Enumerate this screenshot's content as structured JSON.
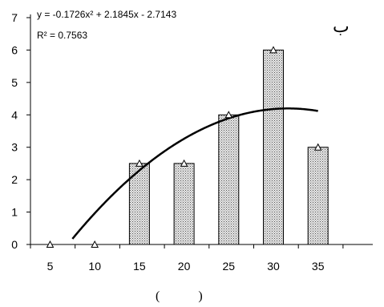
{
  "chart_data": {
    "type": "bar",
    "categories": [
      "5",
      "10",
      "15",
      "20",
      "25",
      "30",
      "35"
    ],
    "x": [
      5,
      10,
      15,
      20,
      25,
      30,
      35
    ],
    "values": [
      0,
      0,
      2.5,
      2.5,
      4,
      6,
      3
    ],
    "ylim": [
      0,
      7
    ],
    "yticks": [
      "0",
      "1",
      "2",
      "3",
      "4",
      "5",
      "6",
      "7"
    ],
    "xticks": [
      "5",
      "10",
      "15",
      "20",
      "25",
      "30",
      "35"
    ],
    "trendline": {
      "type": "polynomial",
      "equation": "y = -0.1726x² + 2.1845x - 2.7143",
      "r2": "R² = 0.7563",
      "coefficients": [
        -0.1726,
        2.1845,
        -2.7143
      ]
    },
    "corner_label": "ب",
    "bottom_caption": "(            )",
    "grid": false,
    "bar_fill": "#d9d9d9",
    "line_color": "#000000"
  }
}
